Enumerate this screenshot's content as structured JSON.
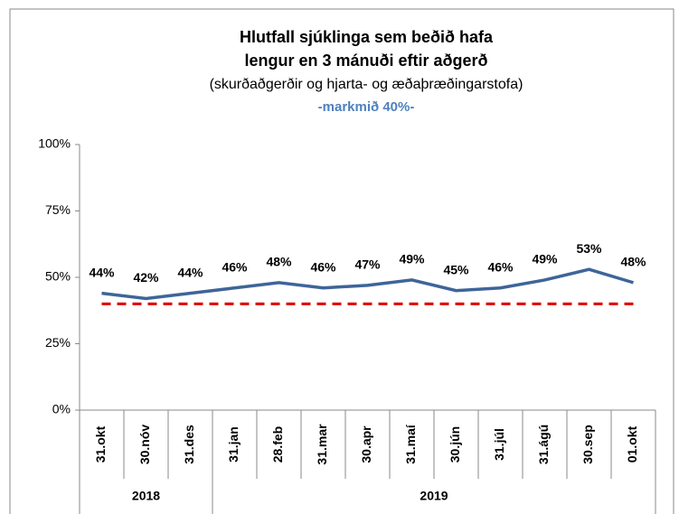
{
  "chart_data": {
    "type": "line",
    "title": [
      "Hlutfall sjúklinga sem beðið hafa",
      "lengur en 3 mánuði eftir aðgerð"
    ],
    "subtitle": "(skurðaðgerðir og hjarta- og æðaþræðingarstofa)",
    "annotation": "-markmið 40%-",
    "categories": [
      "31.okt",
      "30.nóv",
      "31.des",
      "31.jan",
      "28.feb",
      "31.mar",
      "30.apr",
      "31.maí",
      "30.jún",
      "31.júl",
      "31.ágú",
      "30.sep",
      "01.okt"
    ],
    "groups": [
      {
        "label": "2018",
        "span": 3
      },
      {
        "label": "2019",
        "span": 10
      }
    ],
    "series": [
      {
        "color": "#3e6599",
        "values": [
          44,
          42,
          44,
          46,
          48,
          46,
          47,
          49,
          45,
          46,
          49,
          53,
          48
        ],
        "value_labels": [
          "44%",
          "42%",
          "44%",
          "46%",
          "48%",
          "46%",
          "47%",
          "49%",
          "45%",
          "46%",
          "49%",
          "53%",
          "48%"
        ]
      },
      {
        "color": "#e00000",
        "dashed": true,
        "values": [
          40,
          40,
          40,
          40,
          40,
          40,
          40,
          40,
          40,
          40,
          40,
          40,
          40
        ]
      }
    ],
    "ylim": [
      0,
      100
    ],
    "yticks": [
      {
        "value": 0,
        "label": "0%"
      },
      {
        "value": 25,
        "label": "25%"
      },
      {
        "value": 50,
        "label": "50%"
      },
      {
        "value": 75,
        "label": "75%"
      },
      {
        "value": 100,
        "label": "100%"
      }
    ]
  }
}
